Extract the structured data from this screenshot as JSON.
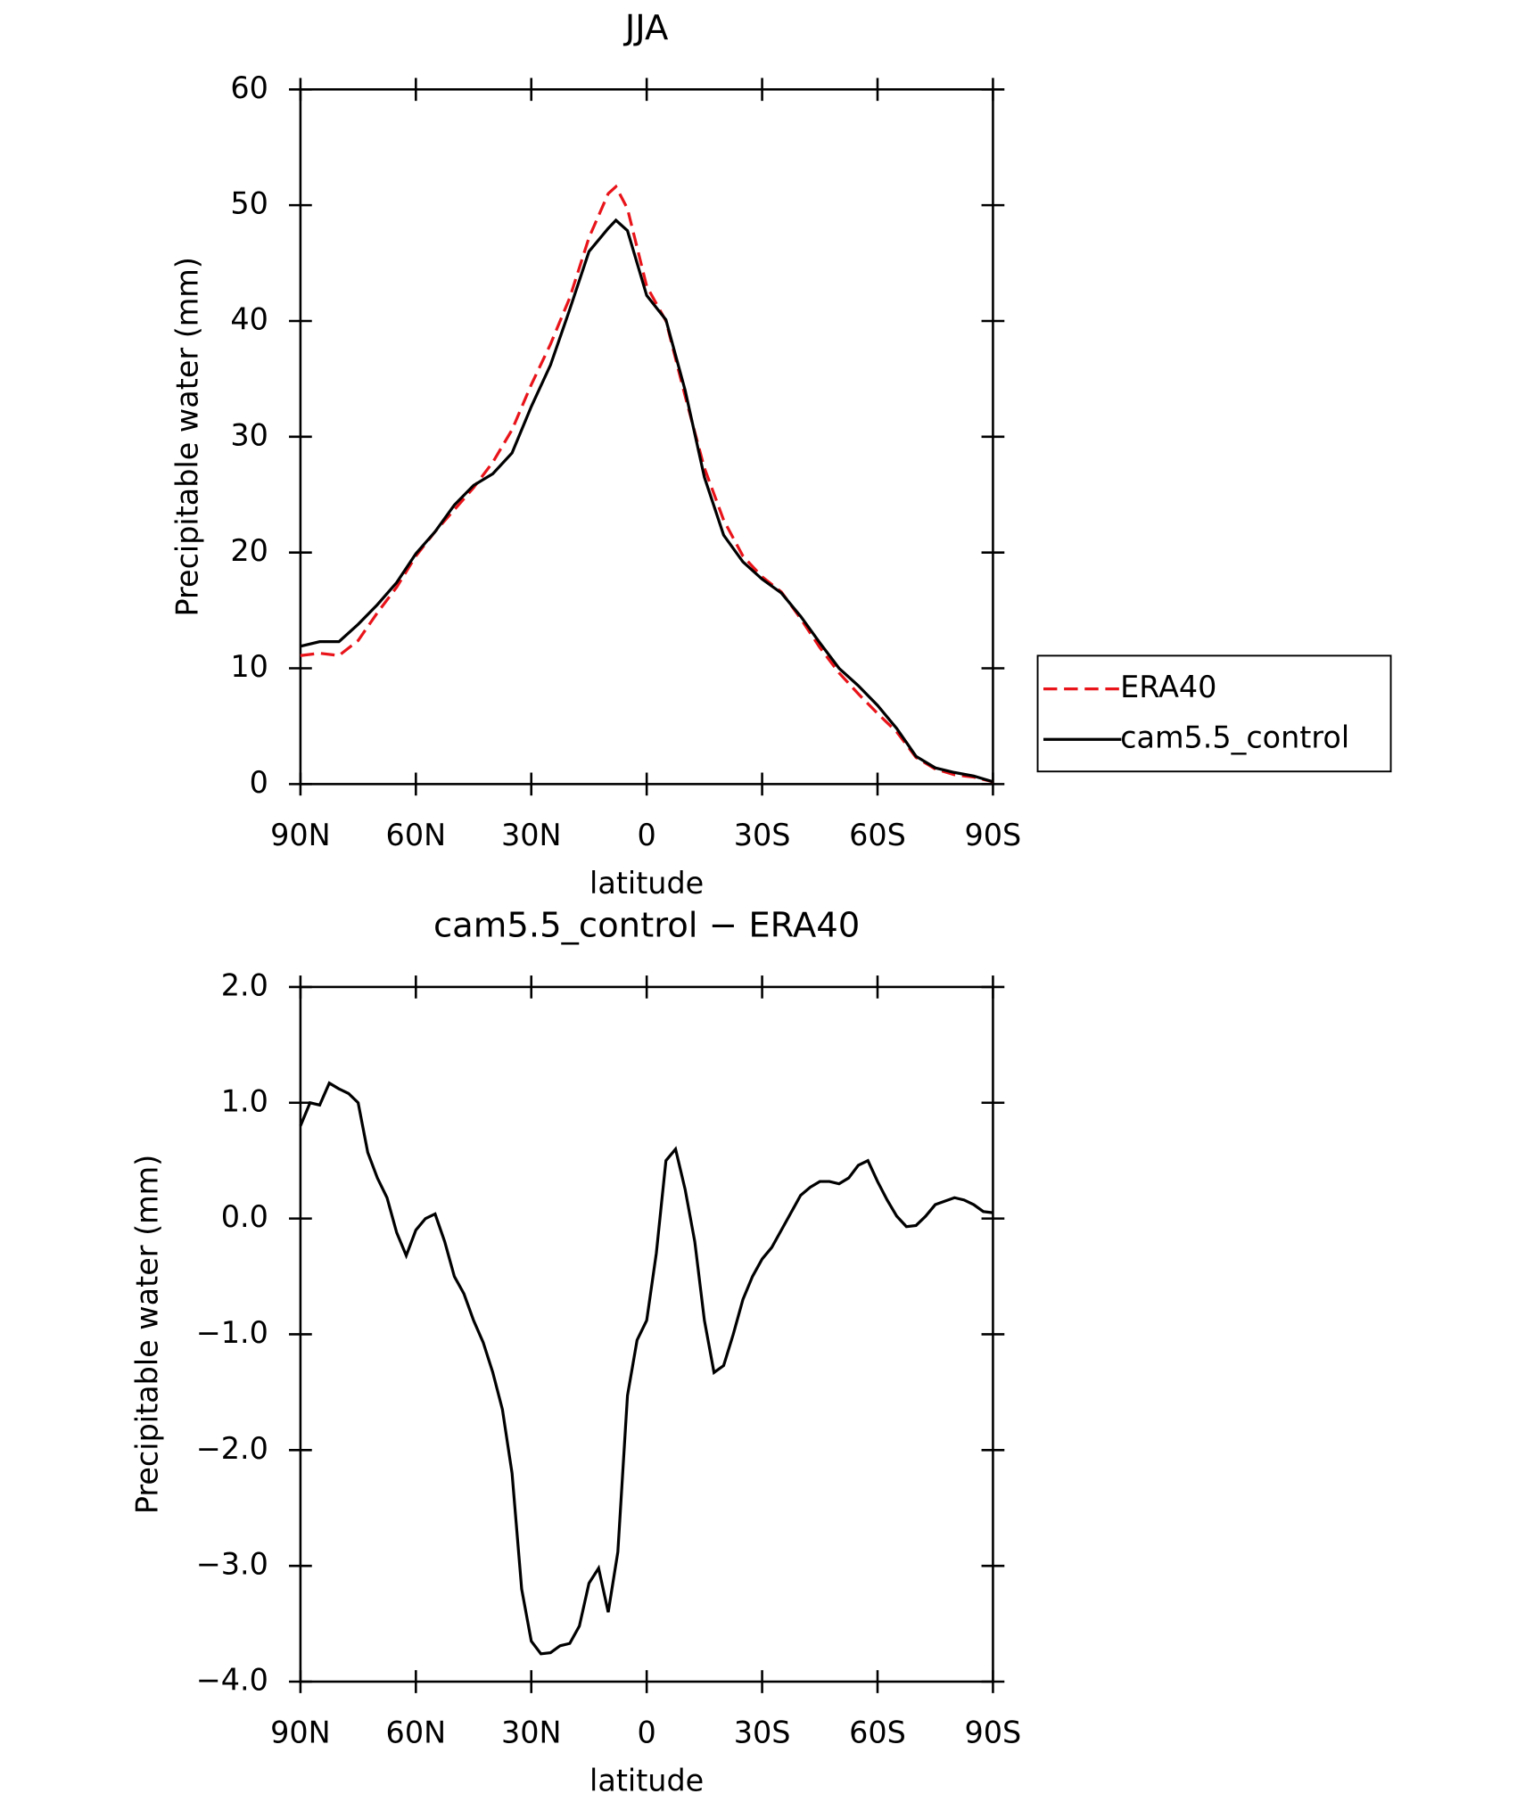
{
  "chart_data": [
    {
      "type": "line",
      "title": "JJA",
      "x_label": "latitude",
      "y_label": "Precipitable water (mm)",
      "x": [
        90,
        85,
        80,
        75,
        70,
        65,
        60,
        55,
        50,
        45,
        40,
        35,
        30,
        25,
        20,
        15,
        10,
        8,
        5,
        0,
        -5,
        -10,
        -15,
        -20,
        -25,
        -30,
        -35,
        -40,
        -45,
        -50,
        -55,
        -60,
        -65,
        -70,
        -75,
        -80,
        -85,
        -90
      ],
      "series": [
        {
          "name": "ERA40",
          "color": "#e8141a",
          "style": "dashed",
          "values": [
            11.1,
            11.3,
            11.1,
            12.4,
            14.8,
            17.0,
            19.7,
            21.8,
            23.7,
            25.6,
            27.8,
            30.6,
            34.5,
            38.0,
            42.0,
            47.2,
            51.0,
            51.6,
            49.7,
            43.0,
            40.0,
            33.5,
            27.3,
            22.8,
            19.7,
            17.9,
            16.6,
            14.3,
            11.8,
            9.6,
            7.8,
            6.1,
            4.5,
            2.3,
            1.3,
            0.8,
            0.6,
            0.2
          ]
        },
        {
          "name": "cam5.5_control",
          "color": "#000000",
          "style": "solid",
          "values": [
            11.9,
            12.3,
            12.3,
            13.8,
            15.5,
            17.4,
            19.9,
            21.8,
            24.1,
            25.8,
            26.8,
            28.6,
            32.6,
            36.2,
            41.0,
            46.0,
            48.0,
            48.7,
            47.8,
            42.2,
            40.1,
            34.0,
            26.5,
            21.5,
            19.2,
            17.7,
            16.5,
            14.5,
            12.2,
            10.0,
            8.5,
            6.8,
            4.8,
            2.4,
            1.4,
            1.0,
            0.7,
            0.2
          ]
        }
      ],
      "xlim": [
        90,
        -90
      ],
      "ylim": [
        0,
        60
      ],
      "xticks": [
        {
          "value": 90,
          "label": "90N"
        },
        {
          "value": 60,
          "label": "60N"
        },
        {
          "value": 30,
          "label": "30N"
        },
        0,
        {
          "value": -30,
          "label": "30S"
        },
        {
          "value": -60,
          "label": "60S"
        },
        {
          "value": -90,
          "label": "90S"
        }
      ],
      "yticks": [
        0,
        10,
        20,
        30,
        40,
        50,
        60
      ],
      "legend": "right"
    },
    {
      "type": "line",
      "title": "cam5.5_control − ERA40",
      "x_label": "latitude",
      "y_label": "Precipitable water (mm)",
      "x": [
        90,
        87.5,
        85,
        82.5,
        80,
        77.5,
        75,
        72.5,
        70,
        67.5,
        65,
        62.5,
        60,
        57.5,
        55,
        52.5,
        50,
        47.5,
        45,
        42.5,
        40,
        37.5,
        35,
        32.5,
        30,
        27.5,
        25,
        22.5,
        20,
        17.5,
        15,
        12.5,
        10,
        7.5,
        5,
        2.5,
        0,
        -2.5,
        -5,
        -7.5,
        -10,
        -12.5,
        -15,
        -17.5,
        -20,
        -22.5,
        -25,
        -27.5,
        -30,
        -32.5,
        -35,
        -37.5,
        -40,
        -42.5,
        -45,
        -47.5,
        -50,
        -52.5,
        -55,
        -57.5,
        -60,
        -62.5,
        -65,
        -67.5,
        -70,
        -72.5,
        -75,
        -77.5,
        -80,
        -82.5,
        -85,
        -87.5,
        -90
      ],
      "series": [
        {
          "color": "#000000",
          "style": "solid",
          "values": [
            0.8,
            1.0,
            0.98,
            1.17,
            1.12,
            1.08,
            1.0,
            0.57,
            0.35,
            0.18,
            -0.12,
            -0.32,
            -0.1,
            0.0,
            0.04,
            -0.2,
            -0.5,
            -0.65,
            -0.88,
            -1.07,
            -1.33,
            -1.65,
            -2.2,
            -3.2,
            -3.65,
            -3.76,
            -3.75,
            -3.69,
            -3.67,
            -3.52,
            -3.15,
            -3.02,
            -3.4,
            -2.88,
            -1.53,
            -1.05,
            -0.88,
            -0.3,
            0.5,
            0.6,
            0.25,
            -0.2,
            -0.88,
            -1.33,
            -1.27,
            -1.0,
            -0.7,
            -0.5,
            -0.35,
            -0.25,
            -0.1,
            0.05,
            0.2,
            0.27,
            0.32,
            0.32,
            0.3,
            0.35,
            0.46,
            0.5,
            0.32,
            0.16,
            0.02,
            -0.07,
            -0.06,
            0.02,
            0.12,
            0.15,
            0.18,
            0.16,
            0.12,
            0.06,
            0.05
          ]
        }
      ],
      "xlim": [
        90,
        -90
      ],
      "ylim": [
        -4,
        2
      ],
      "xticks": [
        {
          "value": 90,
          "label": "90N"
        },
        {
          "value": 60,
          "label": "60N"
        },
        {
          "value": 30,
          "label": "30N"
        },
        0,
        {
          "value": -30,
          "label": "30S"
        },
        {
          "value": -60,
          "label": "60S"
        },
        {
          "value": -90,
          "label": "90S"
        }
      ],
      "yticks": [
        {
          "value": -4,
          "label": "−4.0"
        },
        {
          "value": -3,
          "label": "−3.0"
        },
        {
          "value": -2,
          "label": "−2.0"
        },
        {
          "value": -1,
          "label": "−1.0"
        },
        {
          "value": 0,
          "label": "0.0"
        },
        {
          "value": 1,
          "label": "1.0"
        },
        {
          "value": 2,
          "label": "2.0"
        }
      ]
    }
  ]
}
